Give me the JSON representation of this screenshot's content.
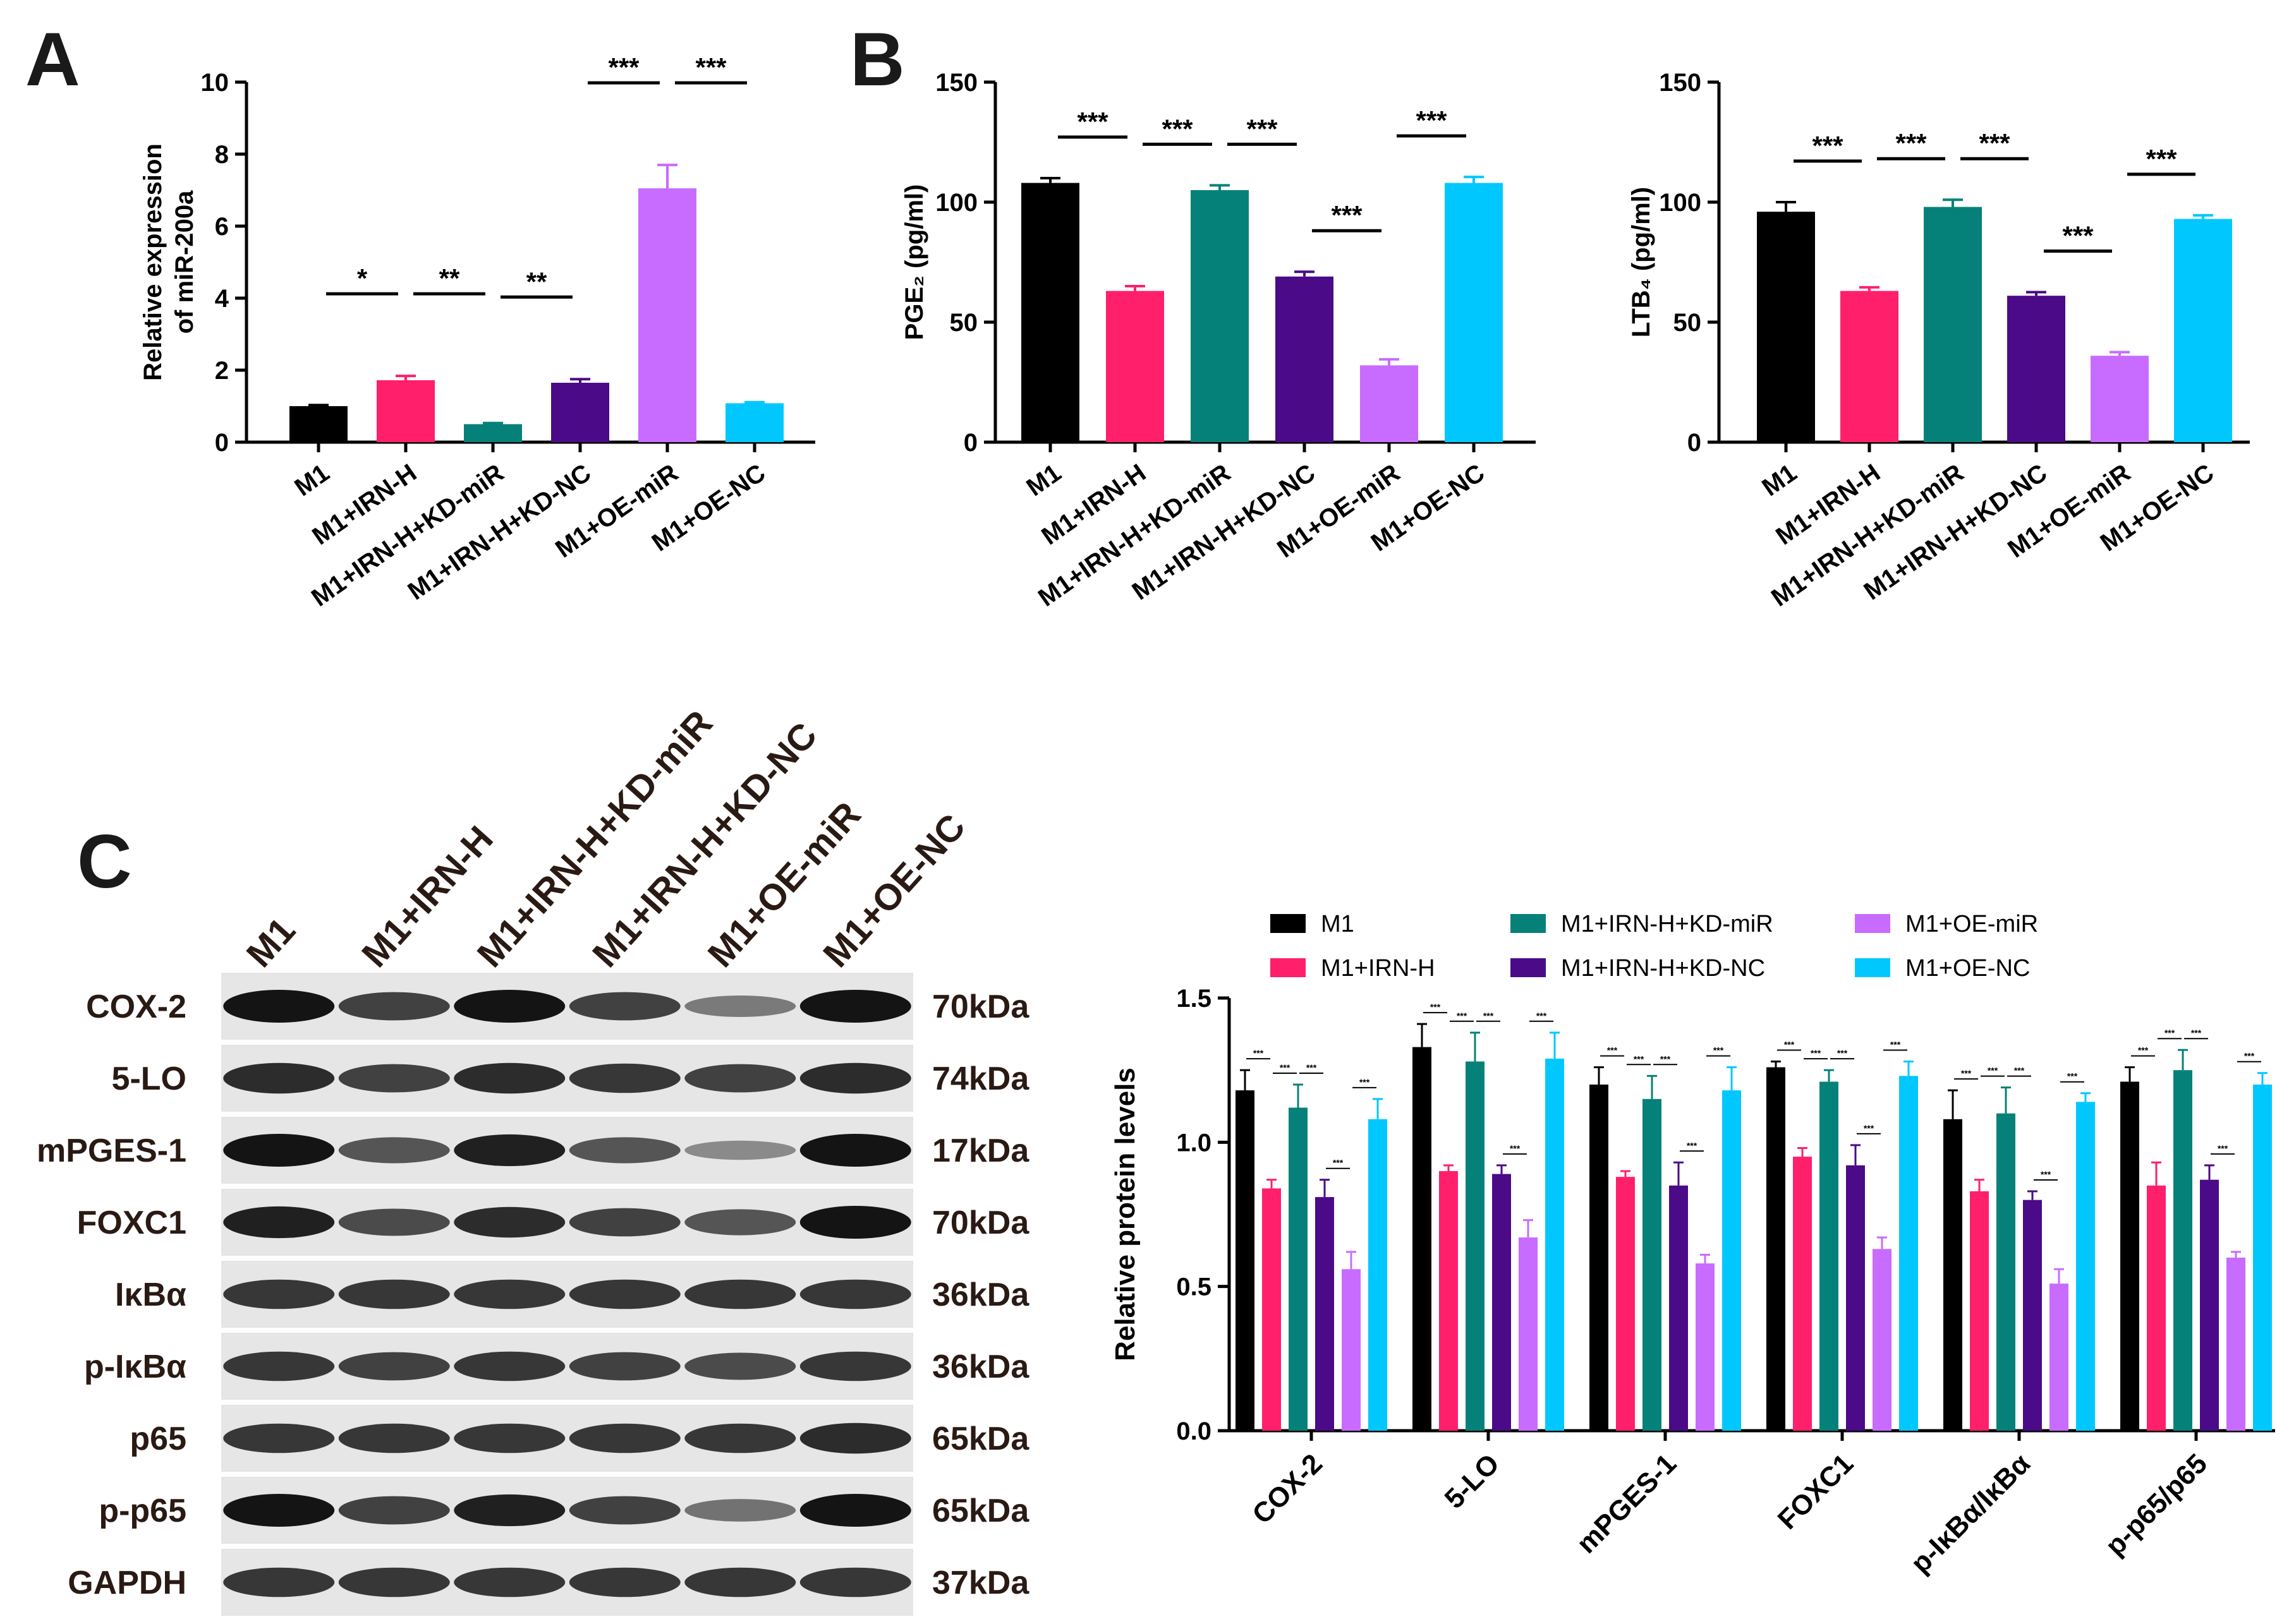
{
  "panels": {
    "A": "A",
    "B": "B",
    "C": "C"
  },
  "chart_data": [
    {
      "id": "A",
      "type": "bar",
      "ylabel_lines": [
        "Relative expression",
        "of miR-200a"
      ],
      "ylim": [
        0,
        10
      ],
      "yticks": [
        0,
        2,
        4,
        6,
        8,
        10
      ],
      "categories": [
        "M1",
        "M1+IRN-H",
        "M1+IRN-H+KD-miR",
        "M1+IRN-H+KD-NC",
        "M1+OE-miR",
        "M1+OE-NC"
      ],
      "values": [
        1.0,
        1.72,
        0.5,
        1.65,
        7.05,
        1.08
      ],
      "errors": [
        0.03,
        0.12,
        0.03,
        0.1,
        0.65,
        0.03
      ],
      "significance": [
        {
          "from": 0,
          "to": 1,
          "label": "*"
        },
        {
          "from": 1,
          "to": 2,
          "label": "**"
        },
        {
          "from": 2,
          "to": 3,
          "label": "**"
        },
        {
          "from": 3,
          "to": 4,
          "label": "***"
        },
        {
          "from": 4,
          "to": 5,
          "label": "***"
        }
      ]
    },
    {
      "id": "B1",
      "type": "bar",
      "ylabel": "PGE₂ (pg/ml)",
      "ylim": [
        0,
        150
      ],
      "yticks": [
        0,
        50,
        100,
        150
      ],
      "categories": [
        "M1",
        "M1+IRN-H",
        "M1+IRN-H+KD-miR",
        "M1+IRN-H+KD-NC",
        "M1+OE-miR",
        "M1+OE-NC"
      ],
      "values": [
        108,
        63,
        105,
        69,
        32,
        108
      ],
      "errors": [
        2,
        2,
        2,
        2,
        2.5,
        2.5
      ],
      "significance": [
        {
          "from": 0,
          "to": 1,
          "label": "***"
        },
        {
          "from": 1,
          "to": 2,
          "label": "***"
        },
        {
          "from": 2,
          "to": 3,
          "label": "***"
        },
        {
          "from": 3,
          "to": 4,
          "label": "***"
        },
        {
          "from": 4,
          "to": 5,
          "label": "***"
        }
      ]
    },
    {
      "id": "B2",
      "type": "bar",
      "ylabel": "LTB₄ (pg/ml)",
      "ylim": [
        0,
        150
      ],
      "yticks": [
        0,
        50,
        100,
        150
      ],
      "categories": [
        "M1",
        "M1+IRN-H",
        "M1+IRN-H+KD-miR",
        "M1+IRN-H+KD-NC",
        "M1+OE-miR",
        "M1+OE-NC"
      ],
      "values": [
        96,
        63,
        98,
        61,
        36,
        93
      ],
      "errors": [
        4,
        1.5,
        3,
        1.5,
        1.5,
        1.5
      ],
      "significance": [
        {
          "from": 0,
          "to": 1,
          "label": "***"
        },
        {
          "from": 1,
          "to": 2,
          "label": "***"
        },
        {
          "from": 2,
          "to": 3,
          "label": "***"
        },
        {
          "from": 3,
          "to": 4,
          "label": "***"
        },
        {
          "from": 4,
          "to": 5,
          "label": "***"
        }
      ]
    },
    {
      "id": "C",
      "type": "bar",
      "ylabel": "Relative protein levels",
      "ylim": [
        0,
        1.5
      ],
      "yticks": [
        "0.0",
        "0.5",
        "1.0",
        "1.5"
      ],
      "categories": [
        "COX-2",
        "5-LO",
        "mPGES-1",
        "FOXC1",
        "p-IκBα/IκBα",
        "p-p65/p65"
      ],
      "legend": [
        "M1",
        "M1+IRN-H",
        "M1+IRN-H+KD-miR",
        "M1+IRN-H+KD-NC",
        "M1+OE-miR",
        "M1+OE-NC"
      ],
      "series": [
        {
          "name": "M1",
          "values": [
            1.18,
            1.33,
            1.2,
            1.26,
            1.08,
            1.21
          ],
          "errors": [
            0.07,
            0.08,
            0.06,
            0.02,
            0.1,
            0.05
          ]
        },
        {
          "name": "M1+IRN-H",
          "values": [
            0.84,
            0.9,
            0.88,
            0.95,
            0.83,
            0.85
          ],
          "errors": [
            0.03,
            0.02,
            0.02,
            0.03,
            0.04,
            0.08
          ]
        },
        {
          "name": "M1+IRN-H+KD-miR",
          "values": [
            1.12,
            1.28,
            1.15,
            1.21,
            1.1,
            1.25
          ],
          "errors": [
            0.08,
            0.1,
            0.08,
            0.04,
            0.09,
            0.07
          ]
        },
        {
          "name": "M1+IRN-H+KD-NC",
          "values": [
            0.81,
            0.89,
            0.85,
            0.92,
            0.8,
            0.87
          ],
          "errors": [
            0.06,
            0.03,
            0.08,
            0.07,
            0.03,
            0.05
          ]
        },
        {
          "name": "M1+OE-miR",
          "values": [
            0.56,
            0.67,
            0.58,
            0.63,
            0.51,
            0.6
          ],
          "errors": [
            0.06,
            0.06,
            0.03,
            0.04,
            0.05,
            0.02
          ]
        },
        {
          "name": "M1+OE-NC",
          "values": [
            1.08,
            1.29,
            1.18,
            1.23,
            1.14,
            1.2
          ],
          "errors": [
            0.07,
            0.09,
            0.08,
            0.05,
            0.03,
            0.04
          ]
        }
      ],
      "significance_label": "***"
    }
  ],
  "colors": [
    "#000000",
    "#ff1f6b",
    "#068179",
    "#4b0a87",
    "#c86bff",
    "#00c8ff"
  ],
  "blot": {
    "lanes": [
      "M1",
      "M1+IRN-H",
      "M1+IRN-H+KD-miR",
      "M1+IRN-H+KD-NC",
      "M1+OE-miR",
      "M1+OE-NC"
    ],
    "rows": [
      {
        "protein": "COX-2",
        "size": "70kDa",
        "intensity": [
          1.0,
          0.8,
          1.0,
          0.8,
          0.5,
          1.0
        ]
      },
      {
        "protein": "5-LO",
        "size": "74kDa",
        "intensity": [
          0.9,
          0.8,
          0.9,
          0.85,
          0.8,
          0.9
        ]
      },
      {
        "protein": "mPGES-1",
        "size": "17kDa",
        "intensity": [
          1.0,
          0.7,
          0.95,
          0.7,
          0.4,
          1.0
        ]
      },
      {
        "protein": "FOXC1",
        "size": "70kDa",
        "intensity": [
          0.95,
          0.75,
          0.9,
          0.8,
          0.7,
          1.0
        ]
      },
      {
        "protein": "IκBα",
        "size": "36kDa",
        "intensity": [
          0.85,
          0.85,
          0.85,
          0.85,
          0.85,
          0.85
        ]
      },
      {
        "protein": "p-IκBα",
        "size": "36kDa",
        "intensity": [
          0.85,
          0.8,
          0.85,
          0.8,
          0.75,
          0.85
        ]
      },
      {
        "protein": "p65",
        "size": "65kDa",
        "intensity": [
          0.85,
          0.85,
          0.85,
          0.85,
          0.85,
          0.9
        ]
      },
      {
        "protein": "p-p65",
        "size": "65kDa",
        "intensity": [
          1.0,
          0.8,
          0.95,
          0.8,
          0.55,
          1.0
        ]
      },
      {
        "protein": "GAPDH",
        "size": "37kDa",
        "intensity": [
          0.85,
          0.85,
          0.85,
          0.85,
          0.85,
          0.85
        ]
      }
    ]
  }
}
